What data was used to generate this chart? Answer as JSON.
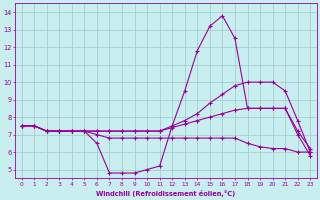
{
  "xlabel": "Windchill (Refroidissement éolien,°C)",
  "bg_color": "#c8eef0",
  "line_color": "#990099",
  "marker": "+",
  "xlim": [
    -0.5,
    23.5
  ],
  "ylim": [
    4.5,
    14.5
  ],
  "xticks": [
    0,
    1,
    2,
    3,
    4,
    5,
    6,
    7,
    8,
    9,
    10,
    11,
    12,
    13,
    14,
    15,
    16,
    17,
    18,
    19,
    20,
    21,
    22,
    23
  ],
  "yticks": [
    5,
    6,
    7,
    8,
    9,
    10,
    11,
    12,
    13,
    14
  ],
  "grid_color": "#a0c8c8",
  "series": [
    [
      7.5,
      7.5,
      7.2,
      7.2,
      7.2,
      7.2,
      6.5,
      4.8,
      4.8,
      4.8,
      5.0,
      5.2,
      7.5,
      9.5,
      11.8,
      13.2,
      13.8,
      12.5,
      8.5,
      8.5,
      8.5,
      8.5,
      7.0,
      5.8
    ],
    [
      7.5,
      7.5,
      7.2,
      7.2,
      7.2,
      7.2,
      7.2,
      7.2,
      7.2,
      7.2,
      7.2,
      7.2,
      7.5,
      7.8,
      8.2,
      8.8,
      9.3,
      9.8,
      10.0,
      10.0,
      10.0,
      9.5,
      7.8,
      6.0
    ],
    [
      7.5,
      7.5,
      7.2,
      7.2,
      7.2,
      7.2,
      7.2,
      7.2,
      7.2,
      7.2,
      7.2,
      7.2,
      7.4,
      7.6,
      7.8,
      8.0,
      8.2,
      8.4,
      8.5,
      8.5,
      8.5,
      8.5,
      7.2,
      6.2
    ],
    [
      7.5,
      7.5,
      7.2,
      7.2,
      7.2,
      7.2,
      7.0,
      6.8,
      6.8,
      6.8,
      6.8,
      6.8,
      6.8,
      6.8,
      6.8,
      6.8,
      6.8,
      6.8,
      6.5,
      6.3,
      6.2,
      6.2,
      6.0,
      6.0
    ]
  ]
}
